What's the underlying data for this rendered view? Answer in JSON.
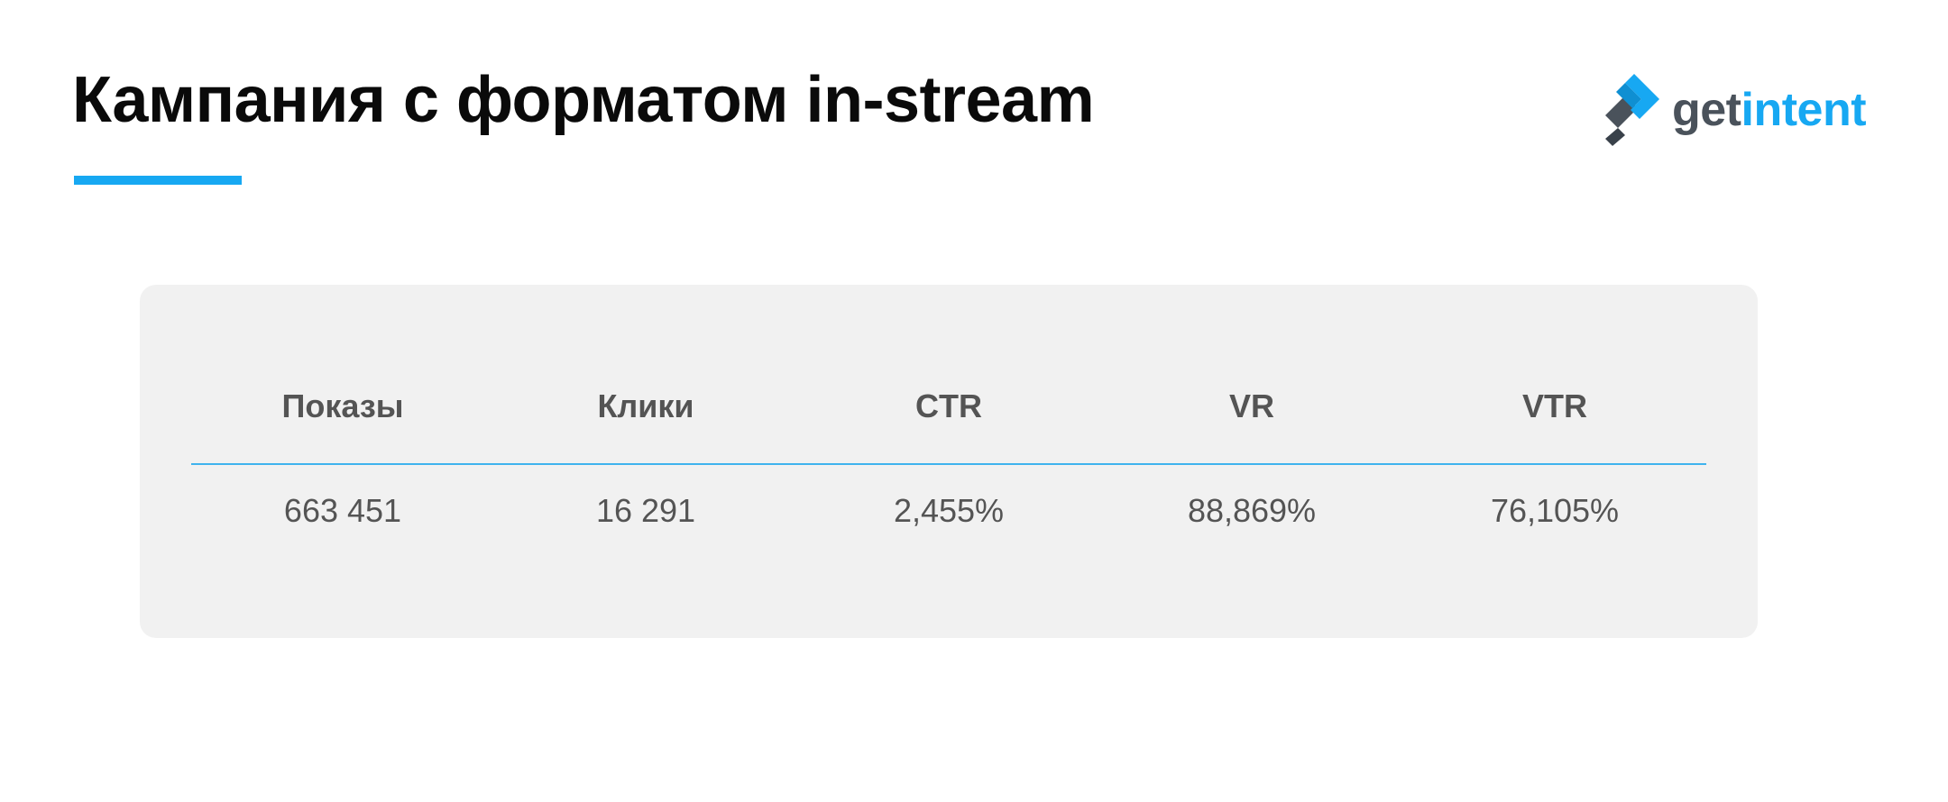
{
  "slide": {
    "title": "Кампания с форматом in-stream"
  },
  "logo": {
    "text_part1": "get",
    "text_part2": "intent",
    "icon": "getintent-logo-icon",
    "colors": {
      "dark": "#4a525b",
      "accent": "#17a8f2"
    }
  },
  "table": {
    "headers": [
      "Показы",
      "Клики",
      "CTR",
      "VR",
      "VTR"
    ],
    "values": [
      "663 451",
      "16 291",
      "2,455%",
      "88,869%",
      "76,105%"
    ]
  },
  "colors": {
    "accent": "#17a8f2",
    "card_background": "#f1f1f1",
    "text_gray": "#545454"
  }
}
